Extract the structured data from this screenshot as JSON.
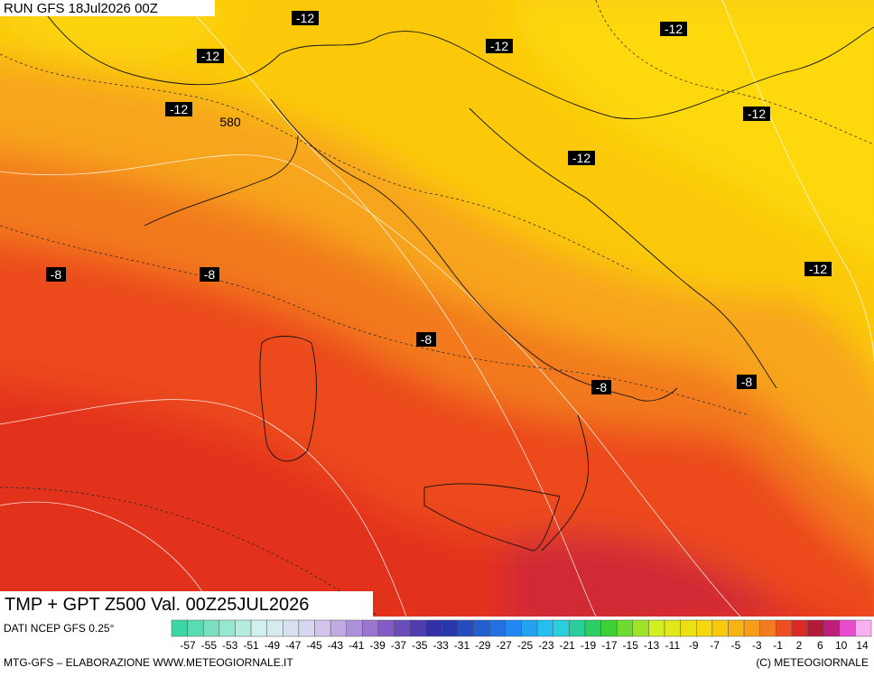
{
  "header": {
    "run": "RUN GFS 18Jul2026 00Z"
  },
  "contour_labels": [
    "-12",
    "-12",
    "-12",
    "-12",
    "-12",
    "-12",
    "-12",
    "-12",
    "580",
    "-8",
    "-8",
    "-8",
    "-8",
    "-8"
  ],
  "map_title": "TMP + GPT Z500 Val. 00Z25JUL2026",
  "source": "DATI NCEP GFS 0.25°",
  "scale": {
    "labels": [
      -57,
      -55,
      -53,
      -51,
      -49,
      -47,
      -45,
      -43,
      -41,
      -39,
      -37,
      -35,
      -33,
      -31,
      -29,
      -27,
      -25,
      -23,
      -21,
      -19,
      -17,
      -15,
      -13,
      -11,
      -9,
      -7,
      -5,
      -3,
      -1,
      2,
      6,
      10,
      14
    ]
  },
  "footer": {
    "left": "MTG-GFS – ELABORAZIONE WWW.METEOGIORNALE.IT",
    "right": "(C) METEOGIORNALE"
  }
}
